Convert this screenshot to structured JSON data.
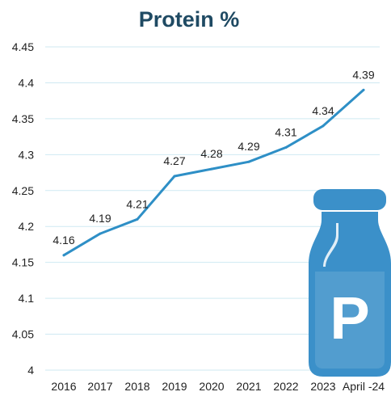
{
  "chart_data": {
    "type": "line",
    "title": "Protein %",
    "categories": [
      "2016",
      "2017",
      "2018",
      "2019",
      "2020",
      "2021",
      "2022",
      "2023",
      "April -24"
    ],
    "series": [
      {
        "values": [
          4.16,
          4.19,
          4.21,
          4.27,
          4.28,
          4.29,
          4.31,
          4.34,
          4.39
        ]
      }
    ],
    "data_labels": [
      "4.16",
      "4.19",
      "4.21",
      "4.27",
      "4.28",
      "4.29",
      "4.31",
      "4.34",
      "4.39"
    ],
    "y_ticks": [
      "4",
      "4.05",
      "4.1",
      "4.15",
      "4.2",
      "4.25",
      "4.3",
      "4.35",
      "4.4",
      "4.45"
    ],
    "ylim": [
      4,
      4.45
    ],
    "grid": true,
    "legend": "none",
    "colors": {
      "line": "#2e8fc6",
      "bottle": "#3b90c9",
      "bottle_letter": "#ffffff",
      "title": "#1f4a63",
      "grid": "#cfe9f2"
    },
    "icon": {
      "name": "milk-bottle-icon",
      "letter": "P"
    }
  }
}
